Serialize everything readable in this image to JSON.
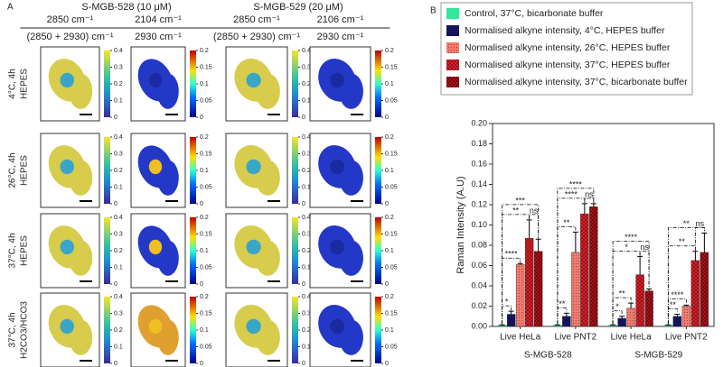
{
  "panel_a": {
    "label": "A",
    "titles": [
      "S-MGB-528 (10 μM)",
      "S-MGB-529 (20 μM)"
    ],
    "columns": [
      {
        "numerator": "2850 cm⁻¹",
        "denominator": "(2850 + 2930) cm⁻¹",
        "colorbar_lim": [
          0,
          0.4
        ],
        "colorbar_ticks": [
          0,
          0.1,
          0.2,
          0.3,
          0.4
        ]
      },
      {
        "numerator": "2104 cm⁻¹",
        "denominator": "2930 cm⁻¹",
        "colorbar_lim": [
          0,
          0.2
        ],
        "colorbar_ticks": [
          0,
          0.05,
          0.1,
          0.15,
          0.2
        ]
      },
      {
        "numerator": "2850 cm⁻¹",
        "denominator": "(2850 + 2930) cm⁻¹",
        "colorbar_lim": [
          0,
          0.4
        ],
        "colorbar_ticks": [
          0,
          0.1,
          0.2,
          0.3,
          0.4
        ]
      },
      {
        "numerator": "2106 cm⁻¹",
        "denominator": "2930 cm⁻¹",
        "colorbar_lim": [
          0,
          0.2
        ],
        "colorbar_ticks": [
          0,
          0.05,
          0.1,
          0.15,
          0.2
        ]
      }
    ],
    "rows": [
      [
        "4°C, 4h",
        "HEPES"
      ],
      [
        "26°C, 4h",
        "HEPES"
      ],
      [
        "37°C, 4h",
        "HEPES"
      ],
      [
        "37°C, 4h",
        "H2CO3/HCO3"
      ]
    ]
  },
  "chart_data": {
    "type": "bar",
    "panel_label": "B",
    "y_label": "Raman Intensity (A.U)",
    "categories": [
      "Live HeLa",
      "Live PNT2",
      "Live HeLa",
      "Live PNT2"
    ],
    "group_labels": [
      "S-MGB-528",
      "S-MGB-529"
    ],
    "ylim": [
      0,
      0.2
    ],
    "yticks": [
      {
        "value": 0,
        "label": "0.00"
      },
      {
        "value": 0.02,
        "label": "0.02"
      },
      {
        "value": 0.04,
        "label": "0.04"
      },
      {
        "value": 0.06,
        "label": "0.06"
      },
      {
        "value": 0.08,
        "label": "0.08"
      },
      {
        "value": 0.1,
        "label": "0.10"
      },
      {
        "value": 0.12,
        "label": "0.12"
      },
      {
        "value": 0.14,
        "label": "0.14"
      },
      {
        "value": 0.16,
        "label": "0.16"
      },
      {
        "value": 0.18,
        "label": "0.18"
      },
      {
        "value": 0.2,
        "label": "0.20"
      }
    ],
    "series": [
      {
        "name": "Control, 37°C, bicarbonate buffer",
        "color": "#2ee89b",
        "hatch": "none",
        "values": [
          0.001,
          0.001,
          0.001,
          0.001
        ],
        "errors": [
          0.0005,
          0.0005,
          0.0005,
          0.0005
        ]
      },
      {
        "name": "Normalised alkyne intensity, 4°C, HEPES buffer",
        "color": "#14145e",
        "hatch": "none",
        "values": [
          0.012,
          0.01,
          0.008,
          0.01
        ],
        "errors": [
          0.003,
          0.003,
          0.002,
          0.002
        ]
      },
      {
        "name": "Normalised alkyne intensity, 26°C, HEPES buffer",
        "color": "#f4796b",
        "hatch": "dots",
        "values": [
          0.061,
          0.073,
          0.018,
          0.02
        ],
        "errors": [
          0.001,
          0.02,
          0.005,
          0.001
        ]
      },
      {
        "name": "Normalised alkyne intensity, 37°C, HEPES buffer",
        "color": "#e8202a",
        "hatch": "cross",
        "values": [
          0.087,
          0.111,
          0.051,
          0.065
        ],
        "errors": [
          0.018,
          0.01,
          0.018,
          0.009
        ]
      },
      {
        "name": "Normalised alkyne intensity, 37°C, bicarbonate buffer",
        "color": "#b3121a",
        "hatch": "cross",
        "values": [
          0.074,
          0.118,
          0.035,
          0.073
        ],
        "errors": [
          0.012,
          0.003,
          0.002,
          0.019
        ]
      }
    ],
    "brackets": [
      {
        "category": 0,
        "from": 0,
        "to": 1,
        "label": "*"
      },
      {
        "category": 0,
        "from": 0,
        "to": 2,
        "label": "****"
      },
      {
        "category": 0,
        "from": 0,
        "to": 3,
        "label": "**"
      },
      {
        "category": 0,
        "from": 0,
        "to": 4,
        "label": "***"
      },
      {
        "category": 0,
        "from": 3,
        "to": 4,
        "label": "ns"
      },
      {
        "category": 1,
        "from": 0,
        "to": 1,
        "label": "**"
      },
      {
        "category": 1,
        "from": 0,
        "to": 2,
        "label": "**"
      },
      {
        "category": 1,
        "from": 0,
        "to": 3,
        "label": "****"
      },
      {
        "category": 1,
        "from": 0,
        "to": 4,
        "label": "****"
      },
      {
        "category": 1,
        "from": 3,
        "to": 4,
        "label": "ns"
      },
      {
        "category": 2,
        "from": 0,
        "to": 1,
        "label": "*"
      },
      {
        "category": 2,
        "from": 0,
        "to": 2,
        "label": "**"
      },
      {
        "category": 2,
        "from": 0,
        "to": 3,
        "label": "*"
      },
      {
        "category": 2,
        "from": 0,
        "to": 4,
        "label": "****"
      },
      {
        "category": 2,
        "from": 3,
        "to": 4,
        "label": "ns"
      },
      {
        "category": 3,
        "from": 0,
        "to": 1,
        "label": "**"
      },
      {
        "category": 3,
        "from": 0,
        "to": 2,
        "label": "****"
      },
      {
        "category": 3,
        "from": 0,
        "to": 3,
        "label": "**"
      },
      {
        "category": 3,
        "from": 0,
        "to": 4,
        "label": "**"
      },
      {
        "category": 3,
        "from": 3,
        "to": 4,
        "label": "ns"
      }
    ]
  }
}
